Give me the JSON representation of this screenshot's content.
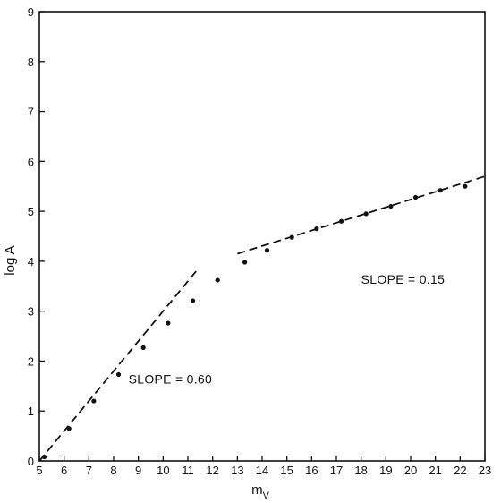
{
  "chart_data": {
    "type": "scatter",
    "xlabel_main": "m",
    "xlabel_sub": "V",
    "ylabel": "log A",
    "xlim": [
      5,
      23
    ],
    "ylim": [
      0,
      9
    ],
    "x_ticks": [
      5,
      6,
      7,
      8,
      9,
      10,
      11,
      12,
      13,
      14,
      15,
      16,
      17,
      18,
      19,
      20,
      21,
      22,
      23
    ],
    "y_ticks": [
      0,
      1,
      2,
      3,
      4,
      5,
      6,
      7,
      8,
      9
    ],
    "grid": false,
    "points": [
      {
        "x": 5.2,
        "y": 0.08
      },
      {
        "x": 6.2,
        "y": 0.65
      },
      {
        "x": 7.2,
        "y": 1.2
      },
      {
        "x": 8.2,
        "y": 1.73
      },
      {
        "x": 9.2,
        "y": 2.27
      },
      {
        "x": 10.2,
        "y": 2.76
      },
      {
        "x": 11.2,
        "y": 3.21
      },
      {
        "x": 12.2,
        "y": 3.62
      },
      {
        "x": 13.3,
        "y": 3.98
      },
      {
        "x": 14.2,
        "y": 4.22
      },
      {
        "x": 15.2,
        "y": 4.48
      },
      {
        "x": 16.2,
        "y": 4.65
      },
      {
        "x": 17.2,
        "y": 4.8
      },
      {
        "x": 18.2,
        "y": 4.95
      },
      {
        "x": 19.2,
        "y": 5.1
      },
      {
        "x": 20.2,
        "y": 5.28
      },
      {
        "x": 21.2,
        "y": 5.42
      },
      {
        "x": 22.2,
        "y": 5.5
      }
    ],
    "fit_lines": [
      {
        "x": [
          5,
          11.4
        ],
        "y": [
          0,
          3.84
        ]
      },
      {
        "x": [
          13,
          23
        ],
        "y": [
          4.15,
          5.7
        ]
      }
    ],
    "annotations": [
      {
        "text": "SLOPE = 0.60",
        "x": 8.6,
        "y": 1.55
      },
      {
        "text": "SLOPE = 0.15",
        "x": 18.0,
        "y": 3.55
      }
    ]
  }
}
